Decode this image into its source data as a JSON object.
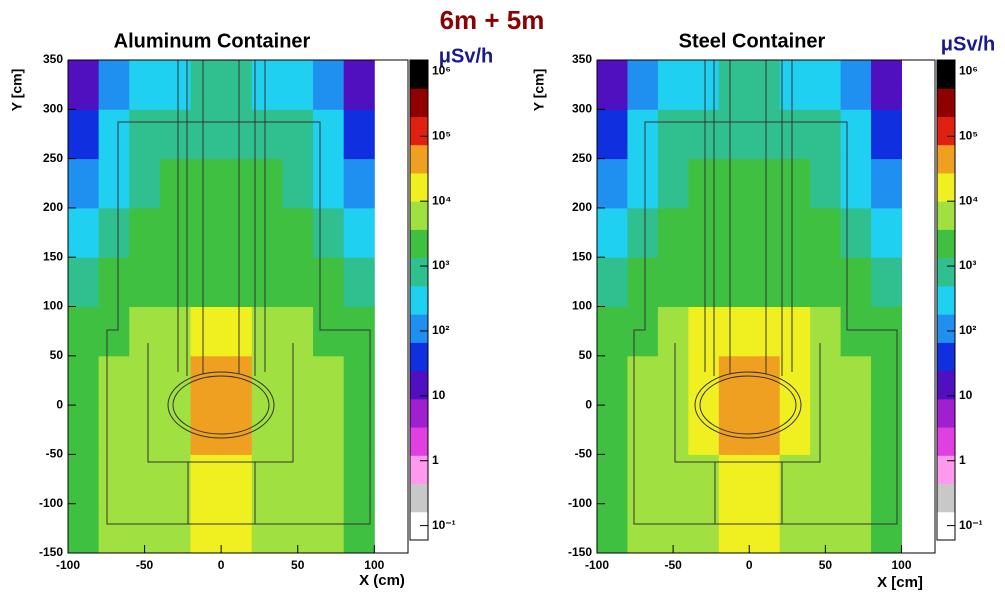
{
  "title": "6m + 5m",
  "chart_data": [
    {
      "type": "heatmap",
      "title": "Aluminum Container",
      "x_label": "X (cm)",
      "y_label": "Y [cm]",
      "colorbar_label": "μSv/h",
      "xlim": [
        -100,
        122
      ],
      "ylim": [
        -150,
        350
      ],
      "xticks": [
        -100,
        -50,
        0,
        50,
        100
      ],
      "yticks": [
        -150,
        -100,
        -50,
        0,
        50,
        100,
        150,
        200,
        250,
        300,
        350
      ],
      "x_bins": [
        -100,
        -80,
        -60,
        -40,
        -20,
        0,
        20,
        40,
        60,
        80,
        100
      ],
      "y_bins": [
        -150,
        -100,
        -50,
        0,
        50,
        100,
        150,
        200,
        250,
        300,
        350
      ],
      "values": [
        [
          2000,
          4000,
          5000,
          6000,
          15000,
          15000,
          6000,
          5000,
          4000,
          2000
        ],
        [
          2000,
          4000,
          5000,
          6000,
          20000,
          20000,
          6000,
          5000,
          4000,
          2000
        ],
        [
          2000,
          4000,
          6000,
          9000,
          30000,
          30000,
          9000,
          6000,
          4000,
          2000
        ],
        [
          2000,
          4000,
          6000,
          10000,
          30000,
          30000,
          10000,
          6000,
          4000,
          2000
        ],
        [
          1500,
          3000,
          5000,
          10000,
          12000,
          12000,
          10000,
          5000,
          3000,
          1500
        ],
        [
          800,
          1500,
          2500,
          3000,
          3500,
          3500,
          3000,
          2500,
          1500,
          800
        ],
        [
          400,
          800,
          1500,
          2000,
          2500,
          2500,
          2000,
          1500,
          800,
          400
        ],
        [
          150,
          400,
          1000,
          1500,
          2000,
          2000,
          1500,
          1000,
          400,
          150
        ],
        [
          50,
          200,
          500,
          800,
          1000,
          1000,
          800,
          500,
          200,
          50
        ],
        [
          20,
          100,
          300,
          400,
          500,
          500,
          400,
          300,
          100,
          20
        ]
      ],
      "log_z": true,
      "zlim": [
        0.06,
        1500000
      ],
      "zticks": [
        {
          "value": 0.1,
          "label": "10⁻¹"
        },
        1,
        10,
        {
          "value": 100,
          "label": "10²"
        },
        {
          "value": 1000,
          "label": "10³"
        },
        {
          "value": 10000,
          "label": "10⁴"
        },
        {
          "value": 100000,
          "label": "10⁵"
        },
        {
          "value": 1000000,
          "label": "10⁶"
        }
      ],
      "colormap": [
        "#ffffff",
        "#c8c8c8",
        "#ff99ee",
        "#e040e0",
        "#a020d0",
        "#5010c0",
        "#1030e0",
        "#2090f0",
        "#20d0f0",
        "#30c090",
        "#40c040",
        "#a0e040",
        "#f0f020",
        "#f0a020",
        "#e02010",
        "#900000",
        "#000000"
      ]
    },
    {
      "type": "heatmap",
      "title": "Steel Container",
      "x_label": "X [cm]",
      "y_label": "Y [cm]",
      "colorbar_label": "μSv/h",
      "xlim": [
        -100,
        122
      ],
      "ylim": [
        -150,
        350
      ],
      "xticks": [
        -100,
        -50,
        0,
        50,
        100
      ],
      "yticks": [
        -150,
        -100,
        -50,
        0,
        50,
        100,
        150,
        200,
        250,
        300,
        350
      ],
      "x_bins": [
        -100,
        -80,
        -60,
        -40,
        -20,
        0,
        20,
        40,
        60,
        80,
        100
      ],
      "y_bins": [
        -150,
        -100,
        -50,
        0,
        50,
        100,
        150,
        200,
        250,
        300,
        350
      ],
      "values": [
        [
          2000,
          4000,
          5000,
          7000,
          15000,
          15000,
          7000,
          5000,
          4000,
          2000
        ],
        [
          2000,
          4000,
          6000,
          7000,
          20000,
          20000,
          7000,
          6000,
          4000,
          2000
        ],
        [
          2000,
          5000,
          8000,
          12000,
          40000,
          40000,
          12000,
          8000,
          5000,
          2000
        ],
        [
          2000,
          5000,
          8000,
          12000,
          40000,
          40000,
          12000,
          8000,
          5000,
          2000
        ],
        [
          1500,
          3000,
          5000,
          12000,
          15000,
          15000,
          12000,
          5000,
          3000,
          1500
        ],
        [
          800,
          1500,
          2500,
          3000,
          3500,
          3500,
          3000,
          2500,
          1500,
          800
        ],
        [
          400,
          800,
          1500,
          2000,
          2500,
          2500,
          2000,
          1500,
          800,
          400
        ],
        [
          150,
          400,
          1000,
          1500,
          2000,
          2000,
          1500,
          1000,
          400,
          150
        ],
        [
          50,
          200,
          500,
          800,
          1000,
          1000,
          800,
          500,
          200,
          50
        ],
        [
          20,
          100,
          300,
          400,
          500,
          500,
          400,
          300,
          100,
          20
        ]
      ],
      "log_z": true,
      "zlim": [
        0.06,
        1500000
      ],
      "zticks": [
        {
          "value": 0.1,
          "label": "10⁻¹"
        },
        1,
        10,
        {
          "value": 100,
          "label": "10²"
        },
        {
          "value": 1000,
          "label": "10³"
        },
        {
          "value": 10000,
          "label": "10⁴"
        },
        {
          "value": 100000,
          "label": "10⁵"
        },
        {
          "value": 1000000,
          "label": "10⁶"
        }
      ],
      "colormap": [
        "#ffffff",
        "#c8c8c8",
        "#ff99ee",
        "#e040e0",
        "#a020d0",
        "#5010c0",
        "#1030e0",
        "#2090f0",
        "#20d0f0",
        "#30c090",
        "#40c040",
        "#a0e040",
        "#f0f020",
        "#f0a020",
        "#e02010",
        "#900000",
        "#000000"
      ]
    }
  ]
}
